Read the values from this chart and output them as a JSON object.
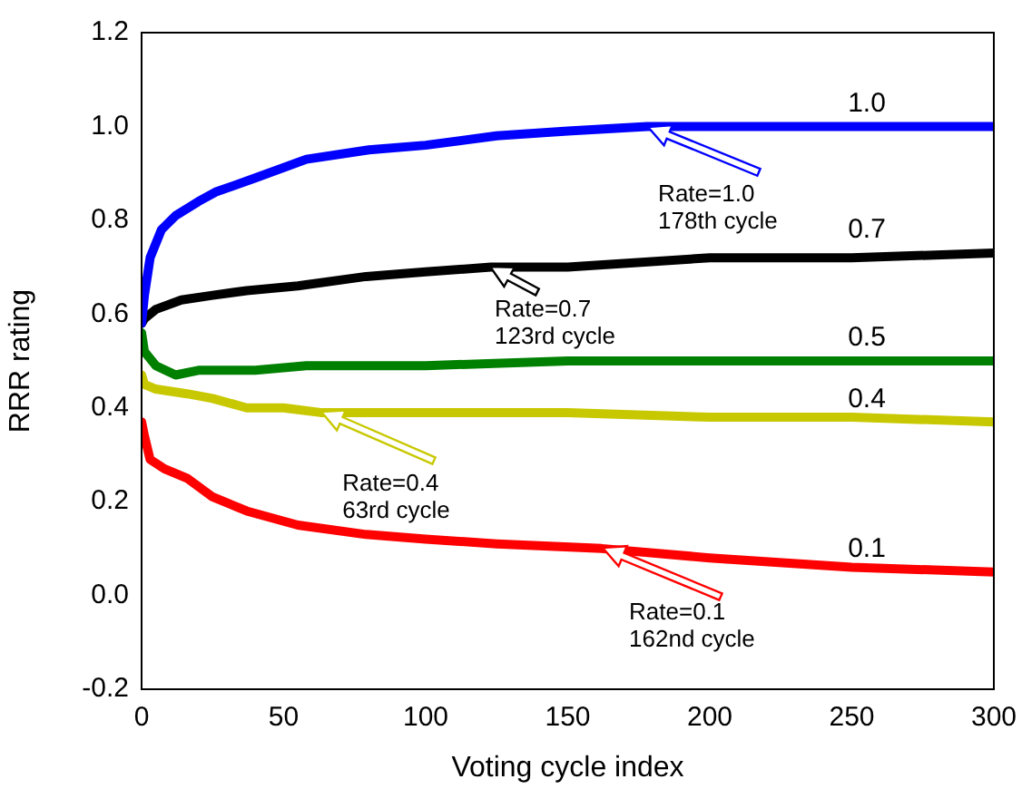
{
  "chart_data": {
    "type": "line",
    "xlabel": "Voting cycle index",
    "ylabel": "RRR rating",
    "xlim": [
      0,
      300
    ],
    "ylim": [
      -0.2,
      1.2
    ],
    "xticks": [
      0,
      50,
      100,
      150,
      200,
      250,
      300
    ],
    "yticks": [
      {
        "value": -0.2,
        "label": "-0.2"
      },
      {
        "value": 0,
        "label": "0.0"
      },
      {
        "value": 0.2,
        "label": "0.2"
      },
      {
        "value": 0.4,
        "label": "0.4"
      },
      {
        "value": 0.6,
        "label": "0.6"
      },
      {
        "value": 0.8,
        "label": "0.8"
      },
      {
        "value": 1,
        "label": "1.0"
      },
      {
        "value": 1.2,
        "label": "1.2"
      }
    ],
    "grid": false,
    "legend": false,
    "series": [
      {
        "name": "1.0",
        "color": "#0000ff",
        "x": [
          0,
          1,
          3,
          7,
          12,
          20,
          26,
          40,
          58,
          80,
          100,
          125,
          150,
          178,
          200,
          250,
          300
        ],
        "values": [
          0.58,
          0.64,
          0.72,
          0.78,
          0.81,
          0.84,
          0.86,
          0.89,
          0.93,
          0.95,
          0.96,
          0.98,
          0.99,
          1.0,
          1.0,
          1.0,
          1.0
        ]
      },
      {
        "name": "0.7",
        "color": "#000000",
        "x": [
          0,
          1,
          5,
          14,
          25,
          37,
          55,
          79,
          100,
          123,
          150,
          200,
          250,
          300
        ],
        "values": [
          0.58,
          0.59,
          0.61,
          0.63,
          0.64,
          0.65,
          0.66,
          0.68,
          0.69,
          0.7,
          0.7,
          0.72,
          0.72,
          0.73
        ]
      },
      {
        "name": "0.5",
        "color": "#008000",
        "x": [
          0,
          1,
          5,
          12,
          20,
          40,
          58,
          100,
          150,
          200,
          250,
          300
        ],
        "values": [
          0.56,
          0.52,
          0.49,
          0.47,
          0.48,
          0.48,
          0.49,
          0.49,
          0.5,
          0.5,
          0.5,
          0.5
        ]
      },
      {
        "name": "0.4",
        "color": "#c8c800",
        "x": [
          0,
          1,
          5,
          16,
          25,
          37,
          50,
          63,
          100,
          150,
          200,
          250,
          300
        ],
        "values": [
          0.47,
          0.45,
          0.44,
          0.43,
          0.42,
          0.4,
          0.4,
          0.39,
          0.39,
          0.39,
          0.38,
          0.38,
          0.37
        ]
      },
      {
        "name": "0.1",
        "color": "#ff0000",
        "x": [
          0,
          1,
          3,
          8,
          16,
          25,
          37,
          55,
          79,
          100,
          125,
          162,
          200,
          250,
          300
        ],
        "values": [
          0.37,
          0.34,
          0.29,
          0.27,
          0.25,
          0.21,
          0.18,
          0.15,
          0.13,
          0.12,
          0.11,
          0.1,
          0.08,
          0.06,
          0.05
        ]
      }
    ],
    "annotations": [
      {
        "text": "Rate=1.0\n178th cycle",
        "x": 178,
        "y": 1.0
      },
      {
        "text": "Rate=0.7\n123rd cycle",
        "x": 123,
        "y": 0.7
      },
      {
        "text": "Rate=0.4\n63rd cycle",
        "x": 63,
        "y": 0.39
      },
      {
        "text": "Rate=0.1\n162nd cycle",
        "x": 162,
        "y": 0.1
      }
    ]
  }
}
